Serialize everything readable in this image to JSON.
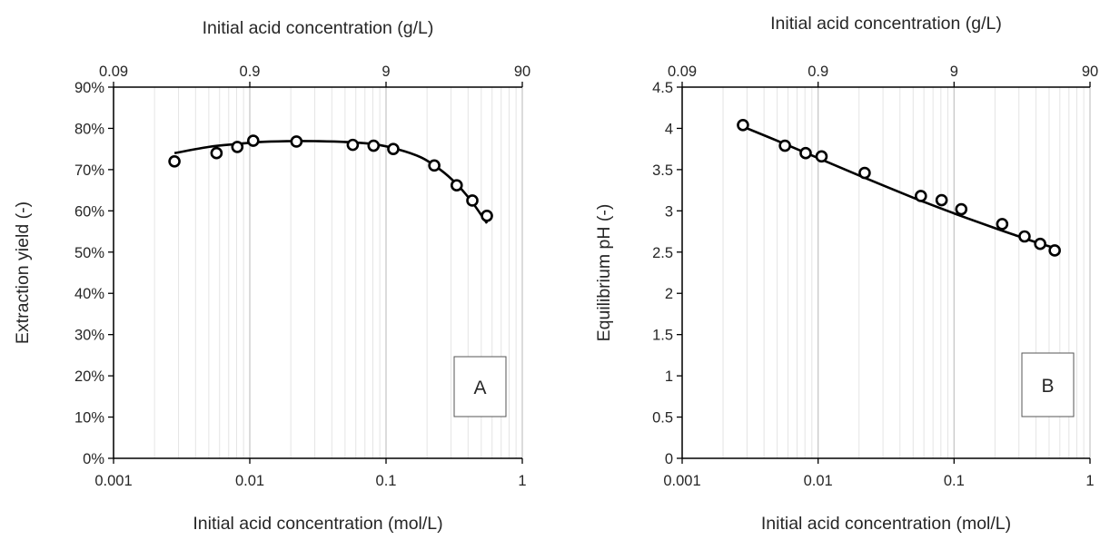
{
  "chart_data": [
    {
      "type": "scatter",
      "panel_label": "A",
      "xlabel": "Initial acid concentration (mol/L)",
      "x2label": "Initial acid concentration (g/L)",
      "ylabel": "Extraction yield (-)",
      "xscale": "log",
      "xlim": [
        0.001,
        1
      ],
      "ylim": [
        0,
        0.9
      ],
      "x_ticks": [
        0.001,
        0.01,
        0.1,
        1
      ],
      "x_tick_labels": [
        "0.001",
        "0.01",
        "0.1",
        "1"
      ],
      "x2_ticks": [
        0.09,
        0.9,
        9,
        90
      ],
      "x2_tick_labels": [
        "0.09",
        "0.9",
        "9",
        "90"
      ],
      "y_ticks": [
        0,
        0.1,
        0.2,
        0.3,
        0.4,
        0.5,
        0.6,
        0.7,
        0.8,
        0.9
      ],
      "y_tick_labels": [
        "0%",
        "10%",
        "20%",
        "30%",
        "40%",
        "50%",
        "60%",
        "70%",
        "80%",
        "90%"
      ],
      "grid": "vertical minor",
      "points": {
        "x": [
          0.0028,
          0.0057,
          0.0081,
          0.0106,
          0.022,
          0.057,
          0.081,
          0.113,
          0.226,
          0.33,
          0.43,
          0.55
        ],
        "y": [
          0.72,
          0.74,
          0.755,
          0.77,
          0.768,
          0.76,
          0.758,
          0.75,
          0.71,
          0.662,
          0.625,
          0.588
        ]
      },
      "fit_curve": {
        "x": [
          0.0028,
          0.005,
          0.008,
          0.012,
          0.02,
          0.03,
          0.05,
          0.08,
          0.12,
          0.18,
          0.25,
          0.33,
          0.42,
          0.5,
          0.55
        ],
        "y": [
          0.74,
          0.755,
          0.762,
          0.767,
          0.769,
          0.769,
          0.767,
          0.762,
          0.75,
          0.73,
          0.7,
          0.665,
          0.625,
          0.59,
          0.57
        ]
      },
      "legend_box_position": "bottom-right"
    },
    {
      "type": "scatter",
      "panel_label": "B",
      "xlabel": "Initial acid concentration (mol/L)",
      "x2label": "Initial acid concentration (g/L)",
      "ylabel": "Equilibrium pH (-)",
      "xscale": "log",
      "xlim": [
        0.001,
        1
      ],
      "ylim": [
        0,
        4.5
      ],
      "x_ticks": [
        0.001,
        0.01,
        0.1,
        1
      ],
      "x_tick_labels": [
        "0.001",
        "0.01",
        "0.1",
        "1"
      ],
      "x2_ticks": [
        0.09,
        0.9,
        9,
        90
      ],
      "x2_tick_labels": [
        "0.09",
        "0.9",
        "9",
        "90"
      ],
      "y_ticks": [
        0,
        0.5,
        1,
        1.5,
        2,
        2.5,
        3,
        3.5,
        4,
        4.5
      ],
      "y_tick_labels": [
        "0",
        "0.5",
        "1",
        "1.5",
        "2",
        "2.5",
        "3",
        "3.5",
        "4",
        "4.5"
      ],
      "grid": "vertical minor",
      "points": {
        "x": [
          0.0028,
          0.0057,
          0.0081,
          0.0106,
          0.022,
          0.057,
          0.081,
          0.113,
          0.226,
          0.33,
          0.43,
          0.55
        ],
        "y": [
          4.04,
          3.79,
          3.7,
          3.66,
          3.46,
          3.18,
          3.13,
          3.02,
          2.84,
          2.69,
          2.6,
          2.52
        ]
      },
      "fit_curve": {
        "x": [
          0.0028,
          0.005,
          0.01,
          0.02,
          0.05,
          0.1,
          0.2,
          0.3,
          0.4,
          0.55
        ],
        "y": [
          4.02,
          3.85,
          3.64,
          3.43,
          3.16,
          2.97,
          2.79,
          2.69,
          2.62,
          2.55
        ]
      },
      "legend_box_position": "bottom-right"
    }
  ]
}
